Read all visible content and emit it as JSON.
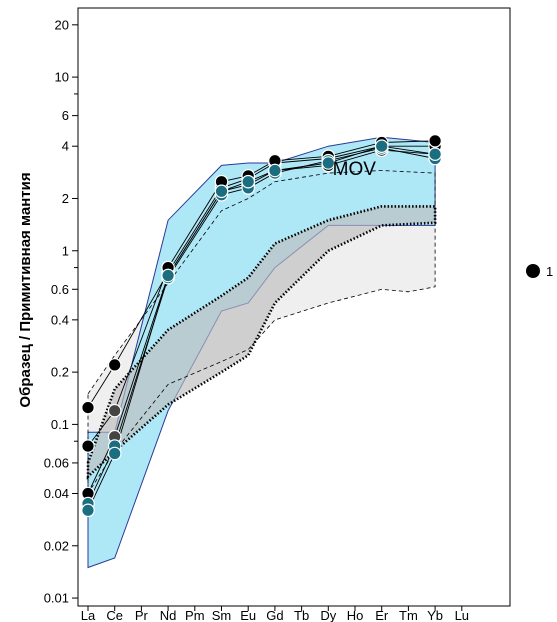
{
  "chart_data": {
    "type": "line",
    "scale": "log",
    "ylabel": "Образец / Примитивная мантия",
    "xlabel": "",
    "categories": [
      "La",
      "Ce",
      "Pr",
      "Nd",
      "Pm",
      "Sm",
      "Eu",
      "Gd",
      "Tb",
      "Dy",
      "Ho",
      "Er",
      "Tm",
      "Yb",
      "Lu"
    ],
    "ylim": [
      0.009,
      25
    ],
    "y_ticks": [
      0.01,
      0.02,
      0.04,
      0.06,
      0.1,
      0.2,
      0.4,
      0.6,
      1,
      2,
      4,
      6,
      10,
      20
    ],
    "y_tick_labels": [
      "0.01",
      "0.02",
      "0.04",
      "0.06",
      "0.1",
      "0.2",
      "0.4",
      "0.6",
      "1",
      "2",
      "4",
      "6",
      "10",
      "20"
    ],
    "y_minor_ticks": [
      0.08,
      0.8,
      8
    ],
    "grid": false,
    "legend": {
      "position": "right",
      "entries": [
        {
          "label": "1",
          "marker": "circle",
          "color": "#000000"
        }
      ]
    },
    "annotations": [
      {
        "text": "MOV",
        "x": "Dy",
        "y": 3.0
      }
    ],
    "colors": {
      "mov_fill": "#aee8f7",
      "mov_stroke": "#2a3a9a",
      "dark_fill": "#bdbdbd",
      "light_fill": "#efefef",
      "sample_line": "#000000",
      "teal_marker": "#1a6e80",
      "grey_marker": "#444444"
    },
    "fields": [
      {
        "name": "MOV",
        "style": "fill-blue",
        "upper": [
          [
            "La",
            0.09
          ],
          [
            "Ce",
            0.09
          ],
          [
            "Nd",
            1.5
          ],
          [
            "Sm",
            3.1
          ],
          [
            "Eu",
            3.2
          ],
          [
            "Gd",
            3.2
          ],
          [
            "Dy",
            4.0
          ],
          [
            "Er",
            4.5
          ],
          [
            "Yb",
            4.2
          ]
        ],
        "lower": [
          [
            "La",
            0.015
          ],
          [
            "Ce",
            0.017
          ],
          [
            "Nd",
            0.12
          ],
          [
            "Sm",
            0.45
          ],
          [
            "Eu",
            0.5
          ],
          [
            "Gd",
            0.8
          ],
          [
            "Dy",
            1.4
          ],
          [
            "Er",
            1.4
          ],
          [
            "Yb",
            1.4
          ]
        ]
      },
      {
        "name": "outer-dashed",
        "style": "dashed-light",
        "upper": [
          [
            "La",
            0.15
          ],
          [
            "Ce",
            0.25
          ],
          [
            "Nd",
            0.65
          ],
          [
            "Sm",
            1.7
          ],
          [
            "Eu",
            2.0
          ],
          [
            "Gd",
            2.5
          ],
          [
            "Dy",
            2.8
          ],
          [
            "Er",
            2.9
          ],
          [
            "Yb",
            2.8
          ]
        ],
        "lower": [
          [
            "La",
            0.04
          ],
          [
            "Ce",
            0.07
          ],
          [
            "Nd",
            0.17
          ],
          [
            "Sm",
            0.23
          ],
          [
            "Eu",
            0.27
          ],
          [
            "Gd",
            0.4
          ],
          [
            "Dy",
            0.5
          ],
          [
            "Er",
            0.6
          ],
          [
            "Tm",
            0.58
          ],
          [
            "Yb",
            0.62
          ]
        ]
      },
      {
        "name": "inner-dotted",
        "style": "dotted-dark",
        "upper": [
          [
            "La",
            0.06
          ],
          [
            "Ce",
            0.16
          ],
          [
            "Nd",
            0.35
          ],
          [
            "Sm",
            0.55
          ],
          [
            "Eu",
            0.7
          ],
          [
            "Gd",
            1.1
          ],
          [
            "Dy",
            1.5
          ],
          [
            "Er",
            1.8
          ],
          [
            "Yb",
            1.8
          ]
        ],
        "lower": [
          [
            "La",
            0.05
          ],
          [
            "Ce",
            0.07
          ],
          [
            "Nd",
            0.13
          ],
          [
            "Sm",
            0.2
          ],
          [
            "Eu",
            0.25
          ],
          [
            "Gd",
            0.5
          ],
          [
            "Dy",
            1.0
          ],
          [
            "Er",
            1.4
          ],
          [
            "Yb",
            1.45
          ]
        ]
      }
    ],
    "series": [
      {
        "name": "1",
        "marker": "black",
        "points": [
          [
            "La",
            0.125
          ],
          [
            "Ce",
            0.22
          ],
          [
            "Nd",
            0.75
          ],
          [
            "Sm",
            2.3
          ],
          [
            "Eu",
            2.6
          ],
          [
            "Gd",
            3.2
          ],
          [
            "Dy",
            3.4
          ],
          [
            "Er",
            4.0
          ],
          [
            "Yb",
            4.0
          ]
        ]
      },
      {
        "name": "1",
        "marker": "black",
        "points": [
          [
            "La",
            0.075
          ],
          [
            "Ce",
            0.12
          ],
          [
            "Nd",
            0.8
          ],
          [
            "Sm",
            2.5
          ],
          [
            "Eu",
            2.7
          ],
          [
            "Gd",
            3.3
          ],
          [
            "Dy",
            3.5
          ],
          [
            "Er",
            4.2
          ],
          [
            "Yb",
            4.3
          ]
        ]
      },
      {
        "name": "1",
        "marker": "black",
        "points": [
          [
            "La",
            0.04
          ],
          [
            "Ce",
            0.085
          ],
          [
            "Nd",
            0.72
          ],
          [
            "Sm",
            2.2
          ],
          [
            "Eu",
            2.4
          ],
          [
            "Gd",
            2.9
          ],
          [
            "Dy",
            3.1
          ],
          [
            "Er",
            3.8
          ],
          [
            "Yb",
            3.6
          ]
        ]
      },
      {
        "name": "1",
        "marker": "teal",
        "points": [
          [
            "La",
            0.035
          ],
          [
            "Ce",
            0.075
          ],
          [
            "Nd",
            0.7
          ],
          [
            "Sm",
            2.1
          ],
          [
            "Eu",
            2.3
          ],
          [
            "Gd",
            2.8
          ],
          [
            "Dy",
            3.3
          ],
          [
            "Er",
            3.9
          ],
          [
            "Yb",
            3.4
          ]
        ]
      },
      {
        "name": "1",
        "marker": "teal",
        "points": [
          [
            "La",
            0.032
          ],
          [
            "Ce",
            0.068
          ],
          [
            "Nd",
            0.72
          ],
          [
            "Sm",
            2.2
          ],
          [
            "Eu",
            2.5
          ],
          [
            "Gd",
            2.9
          ],
          [
            "Dy",
            3.2
          ],
          [
            "Er",
            4.0
          ],
          [
            "Yb",
            3.6
          ]
        ]
      }
    ]
  }
}
